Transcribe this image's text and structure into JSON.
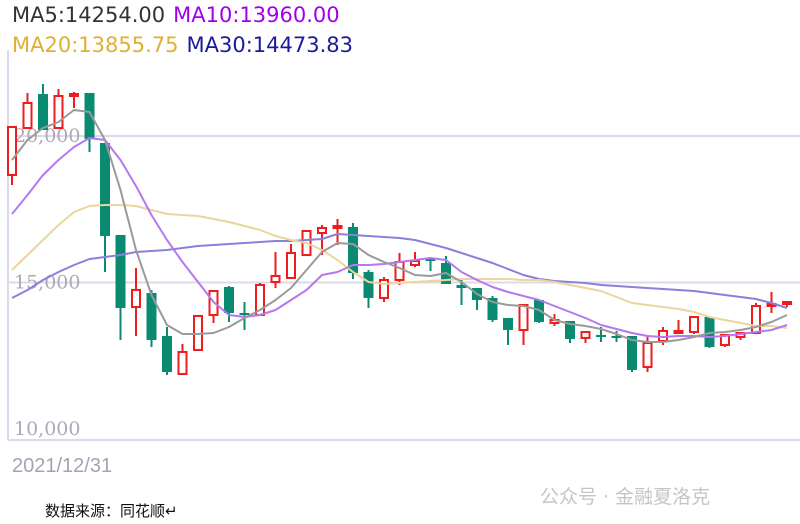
{
  "legend": {
    "ma5": {
      "label": "MA5:14254.00",
      "color": "#333333"
    },
    "ma10": {
      "label": "MA10:13960.00",
      "color": "#a000e8"
    },
    "ma20": {
      "label": "MA20:13855.75",
      "color": "#e0b030"
    },
    "ma30": {
      "label": "MA30:14473.83",
      "color": "#1a1a9c"
    }
  },
  "date_label": "2021/12/31",
  "source": "数据来源：同花顺↵",
  "watermark": "公众号 · 金融夏洛克",
  "chart_data": {
    "type": "candlestick",
    "title": "",
    "ylim": [
      9624,
      22935
    ],
    "yticks": [
      {
        "value": 20000,
        "label": "20,000"
      },
      {
        "value": 15000,
        "label": "15,000"
      },
      {
        "value": 10000,
        "label": "10,000"
      }
    ],
    "grid": true,
    "colors": {
      "up": "#ee1c1c",
      "down": "#0b8a72",
      "ma5": "#9a9a9a",
      "ma10": "#b478f0",
      "ma20": "#ecd59a",
      "ma30": "#8a80dc",
      "grid": "#dcdaea"
    },
    "candles": [
      [
        18669,
        20307,
        20307,
        18328
      ],
      [
        20273,
        21126,
        21468,
        20273
      ],
      [
        21433,
        20205,
        21775,
        20205
      ],
      [
        20273,
        21365,
        21604,
        20273
      ],
      [
        21365,
        21433,
        21502,
        20956
      ],
      [
        21468,
        19898,
        21468,
        19454
      ],
      [
        19761,
        16587,
        19761,
        15358
      ],
      [
        16621,
        14130,
        16621,
        13037
      ],
      [
        14164,
        14744,
        15495,
        13174
      ],
      [
        14642,
        13037,
        14744,
        12799
      ],
      [
        13174,
        11945,
        13481,
        11843
      ],
      [
        11877,
        12628,
        12901,
        11843
      ],
      [
        12696,
        13857,
        13891,
        12696
      ],
      [
        13891,
        14710,
        14710,
        13618
      ],
      [
        14846,
        13959,
        14880,
        13652
      ],
      [
        13959,
        13925,
        14334,
        13379
      ],
      [
        13891,
        14915,
        14983,
        13891
      ],
      [
        15017,
        15222,
        16041,
        14812
      ],
      [
        15154,
        16007,
        16314,
        15154
      ],
      [
        15939,
        16758,
        16758,
        15904
      ],
      [
        16689,
        16860,
        16962,
        15939
      ],
      [
        16894,
        16928,
        17167,
        16280
      ],
      [
        16894,
        15324,
        17031,
        15119
      ],
      [
        15358,
        14471,
        15427,
        14130
      ],
      [
        14471,
        15085,
        15188,
        14334
      ],
      [
        15085,
        15700,
        16007,
        14915
      ],
      [
        15597,
        15734,
        16041,
        15529
      ],
      [
        15802,
        15734,
        15836,
        15392
      ],
      [
        15665,
        14949,
        15904,
        14949
      ],
      [
        14915,
        14812,
        15154,
        14232
      ],
      [
        14812,
        14403,
        14812,
        14061
      ],
      [
        14471,
        13720,
        14539,
        13652
      ],
      [
        13788,
        13379,
        13788,
        12867
      ],
      [
        13379,
        14232,
        14266,
        12867
      ],
      [
        14403,
        13652,
        14403,
        13618
      ],
      [
        13618,
        13720,
        13925,
        13515
      ],
      [
        13686,
        13072,
        13686,
        12935
      ],
      [
        13106,
        13310,
        13310,
        12935
      ],
      [
        13208,
        13140,
        13481,
        12969
      ],
      [
        13174,
        13140,
        13345,
        12969
      ],
      [
        13174,
        12014,
        13174,
        11945
      ],
      [
        12116,
        12935,
        13140,
        11945
      ],
      [
        13003,
        13345,
        13481,
        12867
      ],
      [
        13276,
        13345,
        13720,
        13242
      ],
      [
        13310,
        13822,
        13857,
        13242
      ],
      [
        13822,
        12799,
        13822,
        12765
      ],
      [
        12867,
        13208,
        13208,
        12799
      ],
      [
        13140,
        13276,
        13276,
        13037
      ],
      [
        13276,
        14198,
        14300,
        13242
      ],
      [
        14198,
        14266,
        14676,
        13959
      ],
      [
        14266,
        14334,
        14369,
        14164
      ]
    ],
    "ma5": [
      19181,
      19863,
      20273,
      20478,
      20887,
      20819,
      19863,
      18157,
      16109,
      14573,
      13550,
      13242,
      13242,
      13276,
      13481,
      13788,
      14061,
      14403,
      14812,
      15427,
      16041,
      16348,
      16314,
      15939,
      15700,
      15495,
      15256,
      15222,
      15324,
      15017,
      14607,
      14334,
      14232,
      14198,
      14061,
      13720,
      13584,
      13515,
      13413,
      13242,
      13037,
      12969,
      12969,
      13037,
      13140,
      13276,
      13310,
      13379,
      13481,
      13652,
      13891
    ],
    "ma10": [
      17338,
      17986,
      18669,
      19181,
      19625,
      19932,
      19863,
      19181,
      18293,
      17304,
      16450,
      15700,
      15017,
      14334,
      13891,
      13822,
      13891,
      14061,
      14403,
      14744,
      15256,
      15358,
      15597,
      15597,
      15631,
      15700,
      15768,
      15836,
      15768,
      15358,
      15085,
      14846,
      14676,
      14539,
      14403,
      14198,
      13993,
      13788,
      13550,
      13413,
      13276,
      13174,
      13140,
      13174,
      13174,
      13140,
      13174,
      13242,
      13310,
      13379,
      13550
    ],
    "ma20": [
      15427,
      15939,
      16450,
      16962,
      17406,
      17611,
      17645,
      17645,
      17611,
      17474,
      17338,
      17304,
      17270,
      17167,
      17065,
      16928,
      16792,
      16587,
      16450,
      16348,
      16109,
      15768,
      15358,
      15017,
      14949,
      14983,
      15017,
      15051,
      15085,
      15119,
      15119,
      15119,
      15119,
      15085,
      15085,
      15017,
      14915,
      14812,
      14710,
      14505,
      14300,
      14232,
      14164,
      14096,
      13993,
      13822,
      13720,
      13618,
      13515,
      13515,
      13447
    ],
    "ma30": [
      14471,
      14744,
      15085,
      15358,
      15597,
      15802,
      15870,
      15939,
      16041,
      16075,
      16109,
      16177,
      16246,
      16280,
      16314,
      16348,
      16382,
      16416,
      16416,
      16450,
      16485,
      16655,
      16621,
      16587,
      16553,
      16519,
      16450,
      16314,
      16177,
      16007,
      15836,
      15665,
      15461,
      15256,
      15119,
      15051,
      15017,
      14983,
      14915,
      14880,
      14846,
      14812,
      14778,
      14744,
      14710,
      14642,
      14573,
      14505,
      14436,
      14300,
      14130
    ]
  }
}
